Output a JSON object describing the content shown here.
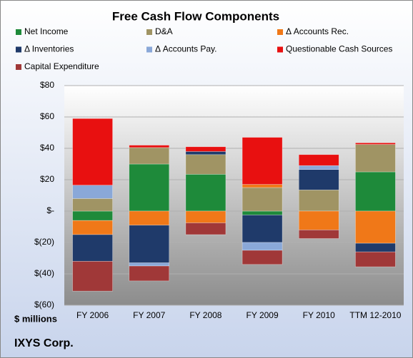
{
  "chart_data": {
    "type": "stacked-bar",
    "title": "Free Cash Flow Components",
    "y_unit_label": "$ millions",
    "footer": "IXYS Corp.",
    "categories": [
      "FY 2006",
      "FY 2007",
      "FY 2008",
      "FY 2009",
      "FY 2010",
      "TTM 12-2010"
    ],
    "series": [
      {
        "name": "Net Income",
        "color": "#1e8a3a",
        "values": [
          -6,
          30,
          23.5,
          -2.5,
          0,
          25
        ]
      },
      {
        "name": "D&A",
        "color": "#a09464",
        "values": [
          8,
          10.5,
          12.5,
          15,
          13.5,
          17.5
        ]
      },
      {
        "name": "Δ Accounts Rec.",
        "color": "#f07818",
        "values": [
          -9,
          -9,
          -7.5,
          2,
          -12,
          -20.5
        ]
      },
      {
        "name": "Δ Inventories",
        "color": "#1f3a6a",
        "values": [
          -17,
          -24,
          2,
          -17.5,
          13,
          -5.5
        ]
      },
      {
        "name": "Δ Accounts Pay.",
        "color": "#8aa8d8",
        "values": [
          8.5,
          -2,
          0,
          -5,
          2.5,
          0
        ]
      },
      {
        "name": "Questionable Cash Sources",
        "color": "#e81010",
        "values": [
          42.5,
          1.5,
          3,
          30,
          7,
          1
        ]
      },
      {
        "name": "Capital Expenditure",
        "color": "#a03838",
        "values": [
          -19,
          -9.5,
          -7.5,
          -9,
          -5.5,
          -9.5
        ]
      }
    ],
    "ylim": [
      -60,
      80
    ],
    "yticks": [
      {
        "value": -60,
        "label": "$(60)"
      },
      {
        "value": -40,
        "label": "$(40)"
      },
      {
        "value": -20,
        "label": "$(20)"
      },
      {
        "value": 0,
        "label": "$-"
      },
      {
        "value": 20,
        "label": "$20"
      },
      {
        "value": 40,
        "label": "$40"
      },
      {
        "value": 60,
        "label": "$60"
      },
      {
        "value": 80,
        "label": "$80"
      }
    ],
    "grid": true
  }
}
